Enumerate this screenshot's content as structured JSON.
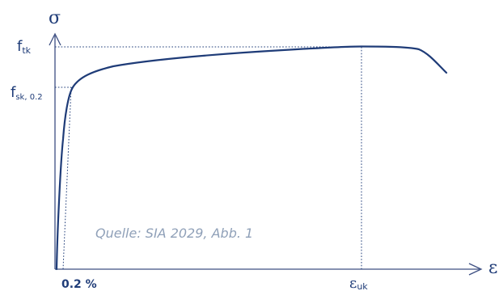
{
  "diagram": {
    "y_axis_symbol": "σ",
    "x_axis_symbol": "ε",
    "y_labels": {
      "ftk_base": "f",
      "ftk_sub": "tk",
      "fsk_base": "f",
      "fsk_sub": "sk, 0.2"
    },
    "x_labels": {
      "offset": "0.2 %",
      "euk_base": "ε",
      "euk_sub": "uk"
    },
    "source_text": "Quelle: SIA 2029, Abb. 1",
    "colors": {
      "curve": "#1f3c78",
      "axis": "#3d4f82",
      "source_text": "#8fa0b8"
    }
  }
}
